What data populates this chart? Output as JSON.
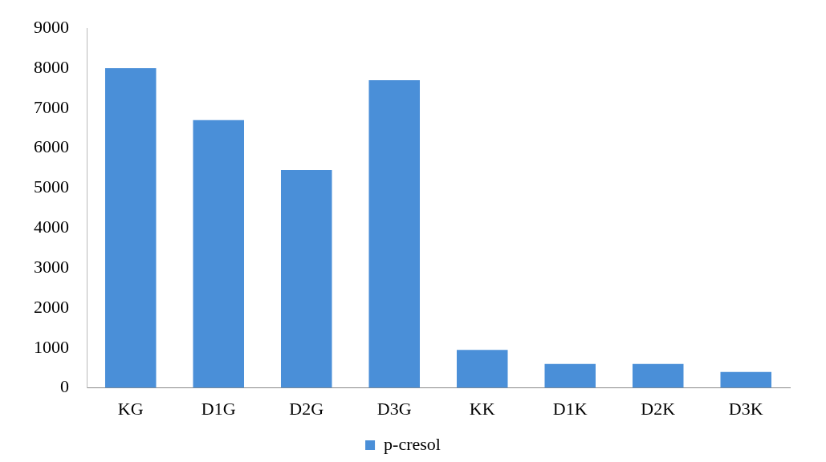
{
  "chart_data": {
    "type": "bar",
    "categories": [
      "KG",
      "D1G",
      "D2G",
      "D3G",
      "KK",
      "D1K",
      "D2K",
      "D3K"
    ],
    "series": [
      {
        "name": "p-cresol",
        "color": "#4a8fd8",
        "values": [
          8000,
          6700,
          5450,
          7700,
          950,
          600,
          600,
          400
        ]
      }
    ],
    "ylim": [
      0,
      9000
    ],
    "yticks": [
      0,
      1000,
      2000,
      3000,
      4000,
      5000,
      6000,
      7000,
      8000,
      9000
    ],
    "grid": false,
    "legend": "bottom"
  }
}
